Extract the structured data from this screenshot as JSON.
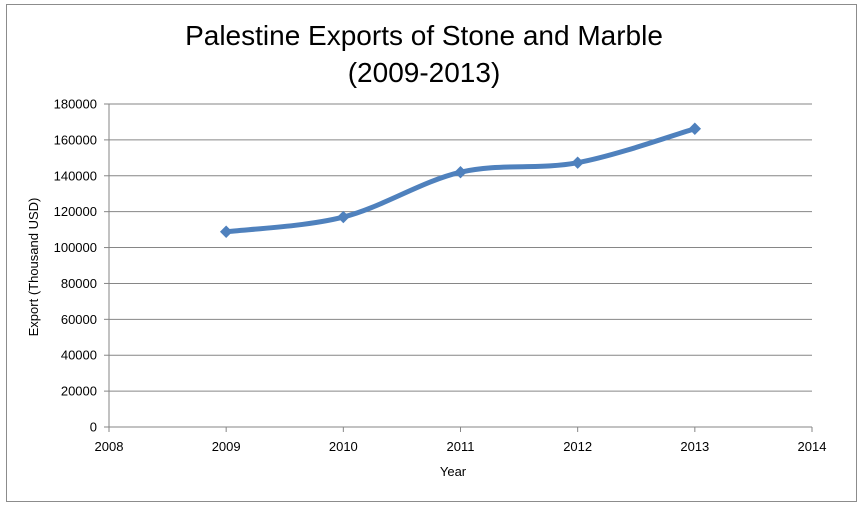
{
  "chart_data": {
    "type": "line",
    "title": "Palestine Exports of Stone and Marble",
    "subtitle": "(2009-2013)",
    "xlabel": "Year",
    "ylabel": "Export (Thousand USD)",
    "x": [
      2009,
      2010,
      2011,
      2012,
      2013
    ],
    "series": [
      {
        "values": [
          108800,
          117000,
          142000,
          147300,
          166200
        ]
      }
    ],
    "xlim": [
      2008,
      2014
    ],
    "ylim": [
      0,
      180000
    ],
    "xticks": [
      "2008",
      "2009",
      "2010",
      "2011",
      "2012",
      "2013",
      "2014"
    ],
    "yticks": [
      "0",
      "20000",
      "40000",
      "60000",
      "80000",
      "100000",
      "120000",
      "140000",
      "160000",
      "180000"
    ],
    "grid": true,
    "smooth": true,
    "series_color": "#4F81BD",
    "grid_color": "#868686"
  }
}
